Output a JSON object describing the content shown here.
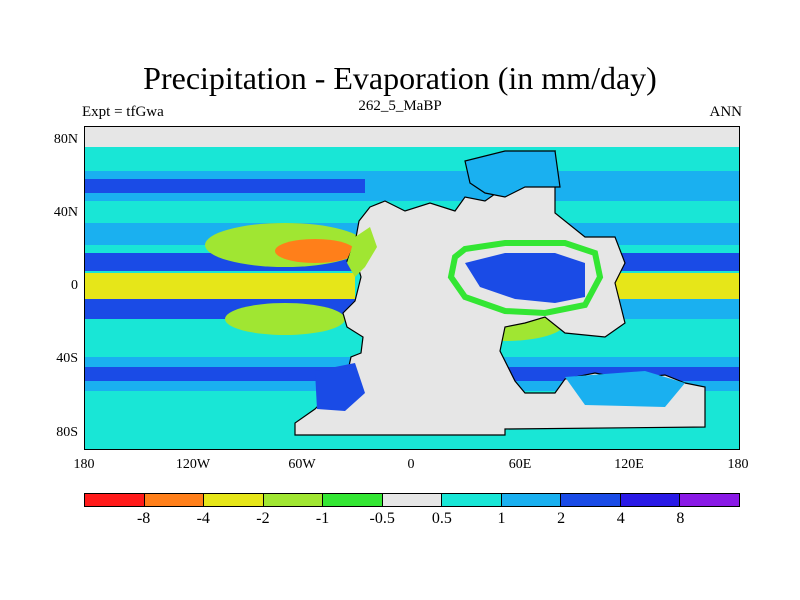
{
  "title": "Precipitation - Evaporation (in mm/day)",
  "subtitle": "262_5_MaBP",
  "left_label": "Expt = tfGwa",
  "right_label": "ANN",
  "lat_ticks": [
    "80N",
    "40N",
    "0",
    "40S",
    "80S"
  ],
  "lon_ticks": [
    "180",
    "120W",
    "60W",
    "0",
    "60E",
    "120E",
    "180"
  ],
  "colorbar": {
    "labels": [
      "-8",
      "-4",
      "-2",
      "-1",
      "-0.5",
      "0.5",
      "1",
      "2",
      "4",
      "8"
    ],
    "colors": [
      "#ff1a1a",
      "#ff7f1a",
      "#e6e619",
      "#a0e632",
      "#33e633",
      "#e6e6e6",
      "#19e6d6",
      "#1ab0f0",
      "#1a4be6",
      "#2a1ae6",
      "#8a1ae6"
    ]
  },
  "colors": {
    "land": "#e6e6e6",
    "ocean_base": "#19e6d6"
  }
}
